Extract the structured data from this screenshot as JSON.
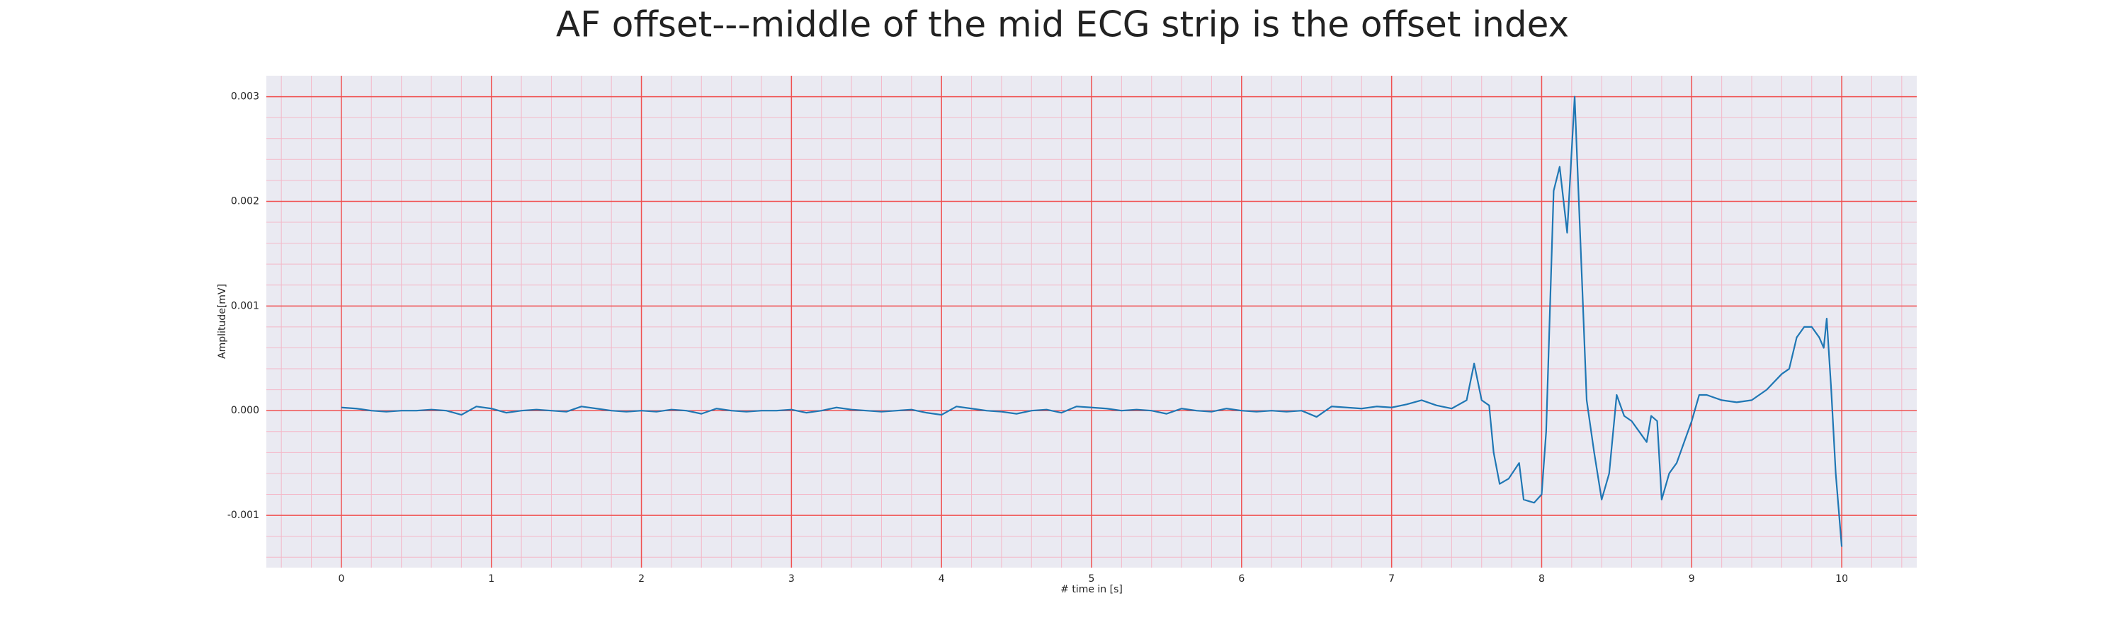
{
  "chart_data": {
    "type": "line",
    "title": "AF offset---middle of the mid ECG strip is the offset index",
    "xlabel": "# time in [s]",
    "ylabel": "Amplitude[mV]",
    "color": "#1f77b4",
    "x": [
      0.0,
      0.1,
      0.2,
      0.3,
      0.4,
      0.5,
      0.6,
      0.7,
      0.8,
      0.9,
      1.0,
      1.1,
      1.2,
      1.3,
      1.4,
      1.5,
      1.6,
      1.7,
      1.8,
      1.9,
      2.0,
      2.1,
      2.2,
      2.3,
      2.4,
      2.5,
      2.6,
      2.7,
      2.8,
      2.9,
      3.0,
      3.1,
      3.2,
      3.3,
      3.4,
      3.5,
      3.6,
      3.7,
      3.8,
      3.9,
      4.0,
      4.1,
      4.2,
      4.3,
      4.4,
      4.5,
      4.6,
      4.7,
      4.8,
      4.9,
      5.0,
      5.1,
      5.2,
      5.3,
      5.4,
      5.5,
      5.6,
      5.7,
      5.8,
      5.9,
      6.0,
      6.1,
      6.2,
      6.3,
      6.4,
      6.5,
      6.6,
      6.7,
      6.8,
      6.9,
      7.0,
      7.1,
      7.2,
      7.3,
      7.4,
      7.5,
      7.55,
      7.6,
      7.65,
      7.68,
      7.72,
      7.78,
      7.85,
      7.88,
      7.95,
      8.0,
      8.03,
      8.08,
      8.12,
      8.17,
      8.22,
      8.27,
      8.3,
      8.35,
      8.4,
      8.45,
      8.5,
      8.55,
      8.6,
      8.7,
      8.73,
      8.77,
      8.8,
      8.85,
      8.9,
      8.95,
      9.0,
      9.05,
      9.1,
      9.2,
      9.3,
      9.4,
      9.5,
      9.6,
      9.65,
      9.7,
      9.75,
      9.8,
      9.85,
      9.88,
      9.9,
      9.93,
      9.96,
      10.0
    ],
    "values": [
      3e-05,
      2e-05,
      0.0,
      -1e-05,
      0.0,
      0.0,
      1e-05,
      0.0,
      -4e-05,
      4e-05,
      2e-05,
      -2e-05,
      0.0,
      1e-05,
      0.0,
      -1e-05,
      4e-05,
      2e-05,
      0.0,
      -1e-05,
      0.0,
      -1e-05,
      1e-05,
      0.0,
      -3e-05,
      2e-05,
      0.0,
      -1e-05,
      0.0,
      0.0,
      1e-05,
      -2e-05,
      0.0,
      3e-05,
      1e-05,
      0.0,
      -1e-05,
      0.0,
      1e-05,
      -2e-05,
      -4e-05,
      4e-05,
      2e-05,
      0.0,
      -1e-05,
      -3e-05,
      0.0,
      1e-05,
      -2e-05,
      4e-05,
      3e-05,
      2e-05,
      0.0,
      1e-05,
      0.0,
      -3e-05,
      2e-05,
      0.0,
      -1e-05,
      2e-05,
      0.0,
      -1e-05,
      0.0,
      -1e-05,
      0.0,
      -6e-05,
      4e-05,
      3e-05,
      2e-05,
      4e-05,
      3e-05,
      6e-05,
      0.0001,
      5e-05,
      2e-05,
      0.0001,
      0.00045,
      0.0001,
      5e-05,
      -0.0004,
      -0.0007,
      -0.00065,
      -0.0005,
      -0.00085,
      -0.00088,
      -0.0008,
      -0.0002,
      0.0021,
      0.00233,
      0.0017,
      0.003,
      0.0012,
      0.0001,
      -0.0004,
      -0.00085,
      -0.0006,
      0.00015,
      -5e-05,
      -0.0001,
      -0.0003,
      -5e-05,
      -0.0001,
      -0.00085,
      -0.0006,
      -0.0005,
      -0.0003,
      -0.0001,
      0.00015,
      0.00015,
      0.0001,
      8e-05,
      0.0001,
      0.0002,
      0.00035,
      0.0004,
      0.0007,
      0.0008,
      0.0008,
      0.0007,
      0.0006,
      0.00088,
      0.0002,
      -0.0006,
      -0.0013
    ],
    "xlim": [
      -0.5,
      10.5
    ],
    "ylim": [
      -0.0015,
      0.0032
    ],
    "xticks": [
      0,
      1,
      2,
      3,
      4,
      5,
      6,
      7,
      8,
      9,
      10
    ],
    "yticks": [
      -0.001,
      {
        "value": 0,
        "label": "0.000"
      },
      0.001,
      0.002,
      0.003
    ],
    "grid": true,
    "minor_grid": true
  }
}
